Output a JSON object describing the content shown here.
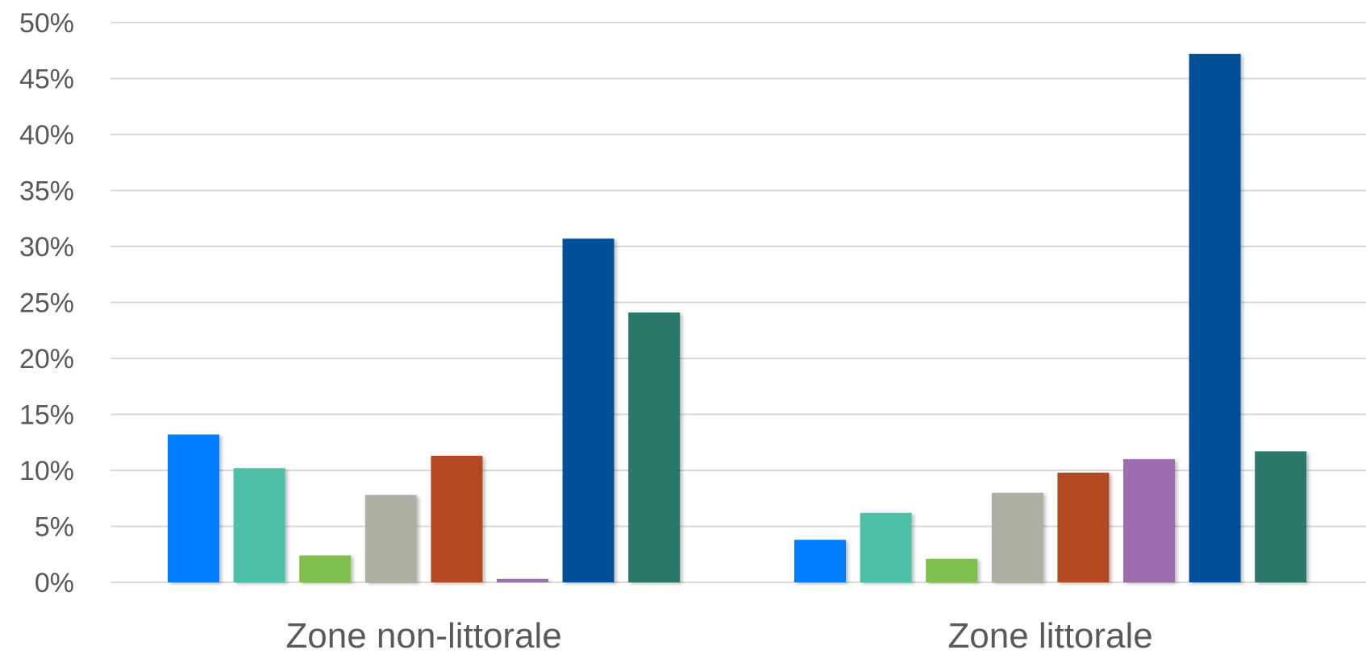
{
  "chart_data": {
    "type": "bar",
    "categories": [
      "Zone non-littorale",
      "Zone littorale"
    ],
    "series": [
      {
        "values": [
          13.2,
          3.8
        ],
        "color": "#0080FF"
      },
      {
        "values": [
          10.2,
          6.2
        ],
        "color": "#50C0A8"
      },
      {
        "values": [
          2.4,
          2.1
        ],
        "color": "#80C050"
      },
      {
        "values": [
          7.8,
          8.0
        ],
        "color": "#ADAFA2"
      },
      {
        "values": [
          11.3,
          9.8
        ],
        "color": "#B44820"
      },
      {
        "values": [
          0.3,
          11.0
        ],
        "color": "#A06CB0"
      },
      {
        "values": [
          30.7,
          47.2
        ],
        "color": "#005098"
      },
      {
        "values": [
          24.1,
          11.7
        ],
        "color": "#2A7868"
      }
    ],
    "y_ticks": [
      "0%",
      "5%",
      "10%",
      "15%",
      "20%",
      "25%",
      "30%",
      "35%",
      "40%",
      "45%",
      "50%"
    ],
    "ylim": [
      0,
      50
    ],
    "grid": true,
    "legend": "none",
    "title": "",
    "xlabel": "",
    "ylabel": ""
  }
}
